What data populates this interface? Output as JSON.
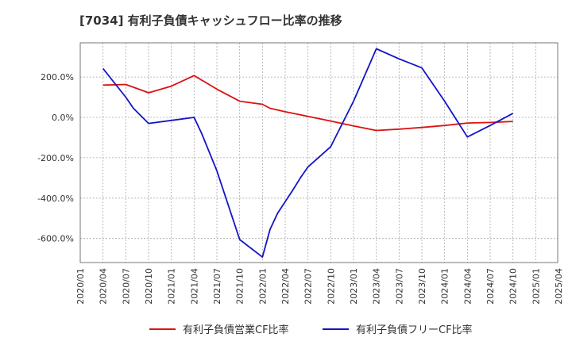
{
  "chart_data": {
    "type": "line",
    "title": "[7034]  有利子負債キャッシュフロー比率の推移",
    "xlabel": "",
    "ylabel": "",
    "x_ticks": [
      "2020/01",
      "2020/04",
      "2020/07",
      "2020/10",
      "2021/01",
      "2021/04",
      "2021/07",
      "2021/10",
      "2022/01",
      "2022/04",
      "2022/07",
      "2022/10",
      "2023/01",
      "2023/04",
      "2023/07",
      "2023/10",
      "2024/01",
      "2024/04",
      "2024/07",
      "2024/10",
      "2025/01",
      "2025/04"
    ],
    "y_ticks": [
      200,
      0,
      -200,
      -400,
      -600
    ],
    "y_tick_labels": [
      "200.0%",
      "0.0%",
      "-200.0%",
      "-400.0%",
      "-600.0%"
    ],
    "ylim": [
      -720,
      365
    ],
    "grid": true,
    "legend_position": "bottom",
    "series": [
      {
        "name": "有利子負債営業CF比率",
        "color": "#dd1111",
        "points": [
          [
            "2020/04",
            160
          ],
          [
            "2020/07",
            163
          ],
          [
            "2020/09",
            136
          ],
          [
            "2020/10",
            122
          ],
          [
            "2021/01",
            155
          ],
          [
            "2021/04",
            207
          ],
          [
            "2021/07",
            140
          ],
          [
            "2021/10",
            80
          ],
          [
            "2022/01",
            65
          ],
          [
            "2022/02",
            45
          ],
          [
            "2022/04",
            28
          ],
          [
            "2022/07",
            5
          ],
          [
            "2022/10",
            -18
          ],
          [
            "2023/01",
            -42
          ],
          [
            "2023/04",
            -65
          ],
          [
            "2023/07",
            -58
          ],
          [
            "2023/10",
            -50
          ],
          [
            "2024/01",
            -40
          ],
          [
            "2024/04",
            -28
          ],
          [
            "2024/07",
            -25
          ],
          [
            "2024/10",
            -20
          ]
        ]
      },
      {
        "name": "有利子負債フリーCF比率",
        "color": "#1414c8",
        "points": [
          [
            "2020/04",
            242
          ],
          [
            "2020/07",
            100
          ],
          [
            "2020/08",
            45
          ],
          [
            "2020/10",
            -30
          ],
          [
            "2021/01",
            -15
          ],
          [
            "2021/04",
            0
          ],
          [
            "2021/05",
            -80
          ],
          [
            "2021/07",
            -265
          ],
          [
            "2021/10",
            -605
          ],
          [
            "2022/01",
            -692
          ],
          [
            "2022/02",
            -555
          ],
          [
            "2022/03",
            -475
          ],
          [
            "2022/05",
            -360
          ],
          [
            "2022/06",
            -300
          ],
          [
            "2022/07",
            -245
          ],
          [
            "2022/10",
            -145
          ],
          [
            "2023/01",
            80
          ],
          [
            "2023/04",
            340
          ],
          [
            "2023/07",
            290
          ],
          [
            "2023/10",
            245
          ],
          [
            "2024/01",
            80
          ],
          [
            "2024/04",
            -97
          ],
          [
            "2024/07",
            -40
          ],
          [
            "2024/10",
            20
          ]
        ]
      }
    ]
  }
}
